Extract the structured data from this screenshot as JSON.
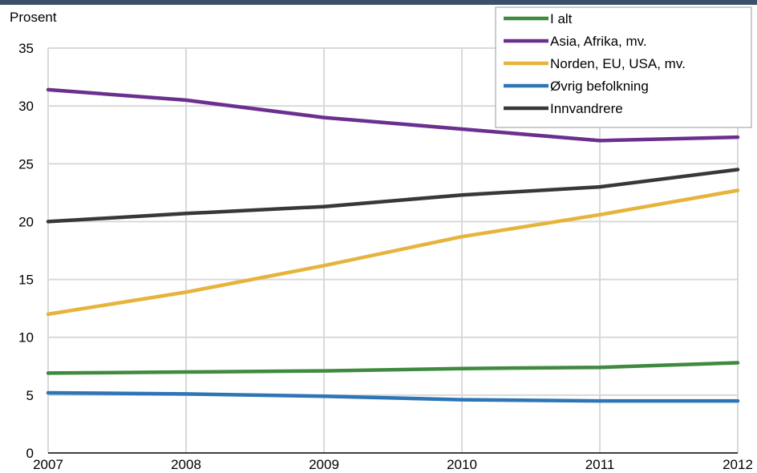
{
  "chart_data": {
    "type": "line",
    "title": "",
    "ylabel": "Prosent",
    "xlabel": "",
    "x": [
      "2007",
      "2008",
      "2009",
      "2010",
      "2011",
      "2012"
    ],
    "ylim": [
      0,
      35
    ],
    "yticks": [
      0,
      5,
      10,
      15,
      20,
      25,
      30,
      35
    ],
    "grid": true,
    "legend_position": "top-right",
    "series": [
      {
        "name": "I alt",
        "color": "#3e8a3e",
        "values": [
          6.9,
          7.0,
          7.1,
          7.3,
          7.4,
          7.8
        ]
      },
      {
        "name": "Asia, Afrika, mv.",
        "color": "#6b2f8f",
        "values": [
          31.4,
          30.5,
          29.0,
          28.0,
          27.0,
          27.3
        ]
      },
      {
        "name": "Norden, EU, USA, mv.",
        "color": "#e6b33c",
        "values": [
          12.0,
          13.9,
          16.2,
          18.7,
          20.6,
          22.7
        ]
      },
      {
        "name": "Øvrig befolkning",
        "color": "#2e75b6",
        "values": [
          5.2,
          5.1,
          4.9,
          4.6,
          4.5,
          4.5
        ]
      },
      {
        "name": "Innvandrere",
        "color": "#383838",
        "values": [
          20.0,
          20.7,
          21.3,
          22.3,
          23.0,
          24.5
        ]
      }
    ]
  }
}
